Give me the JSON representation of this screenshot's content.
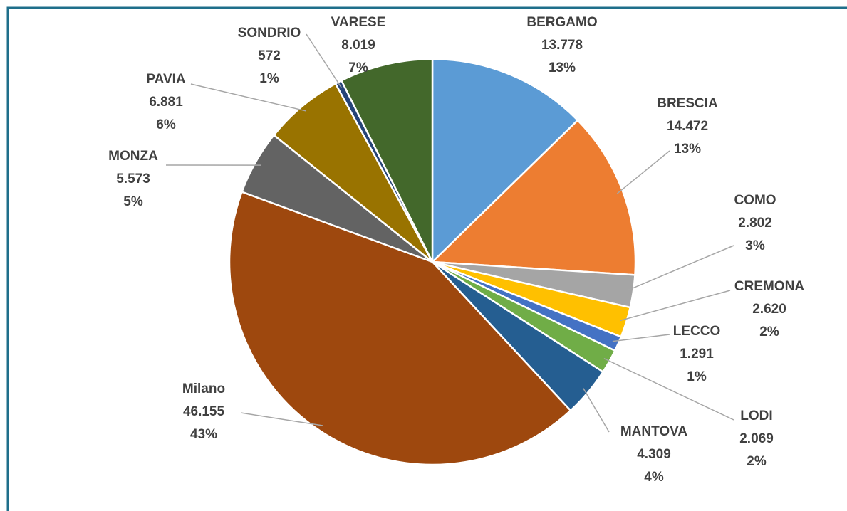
{
  "chart_data": {
    "type": "pie",
    "categories": [
      "BERGAMO",
      "BRESCIA",
      "COMO",
      "CREMONA",
      "LECCO",
      "LODI",
      "MANTOVA",
      "Milano",
      "MONZA",
      "PAVIA",
      "SONDRIO",
      "VARESE"
    ],
    "values": [
      13778,
      14472,
      2802,
      2620,
      1291,
      2069,
      4309,
      46155,
      5573,
      6881,
      572,
      8019
    ],
    "value_labels": [
      "13.778",
      "14.472",
      "2.802",
      "2.620",
      "1.291",
      "2.069",
      "4.309",
      "46.155",
      "5.573",
      "6.881",
      "572",
      "8.019"
    ],
    "percent_labels": [
      "13%",
      "13%",
      "3%",
      "2%",
      "1%",
      "2%",
      "4%",
      "43%",
      "5%",
      "6%",
      "1%",
      "7%"
    ],
    "colors": [
      "#5b9bd5",
      "#ed7d31",
      "#a5a5a5",
      "#ffc000",
      "#4472c4",
      "#70ad47",
      "#255e91",
      "#9e480e",
      "#636363",
      "#997300",
      "#264478",
      "#43682b"
    ]
  }
}
